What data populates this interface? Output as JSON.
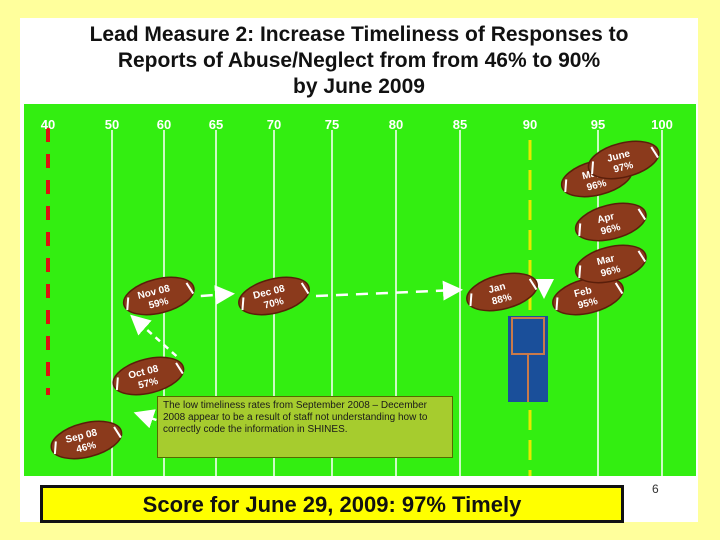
{
  "title_lines": [
    "Lead Measure 2:  Increase Timeliness of Responses to",
    "Reports of Abuse/Neglect from  from 46% to 90%",
    "by June 2009"
  ],
  "chart_data": {
    "type": "scatter",
    "title": "Lead Measure 2: Increase Timeliness of Responses to Reports of Abuse/Neglect from from 46% to 90% by June 2009",
    "x_ticks": [
      40,
      50,
      60,
      65,
      70,
      75,
      80,
      85,
      90,
      95,
      100
    ],
    "xlim": [
      40,
      100
    ],
    "target": 90,
    "baseline": 40,
    "points": [
      {
        "month": "Sep 08",
        "value": 46
      },
      {
        "month": "Oct 08",
        "value": 57
      },
      {
        "month": "Nov 08",
        "value": 59
      },
      {
        "month": "Dec 08",
        "value": 70
      },
      {
        "month": "Jan",
        "value": 88
      },
      {
        "month": "Feb",
        "value": 95
      },
      {
        "month": "Mar",
        "value": 96
      },
      {
        "month": "Apr",
        "value": 96
      },
      {
        "month": "May",
        "value": 96
      },
      {
        "month": "June",
        "value": 97
      }
    ]
  },
  "note": "The low timeliness rates from September 2008 – December 2008 appear to be a result of staff not understanding how to correctly code the information in SHINES.",
  "score": "Score for June 29, 2009:  97% Timely",
  "page_number": "6",
  "colors": {
    "field": "#33ee11",
    "ball": "#8b3a1c",
    "target_line": "#e8e800",
    "baseline": "#dd1111",
    "note_bg": "#a6cc2e",
    "score_bg": "#ffff00"
  }
}
